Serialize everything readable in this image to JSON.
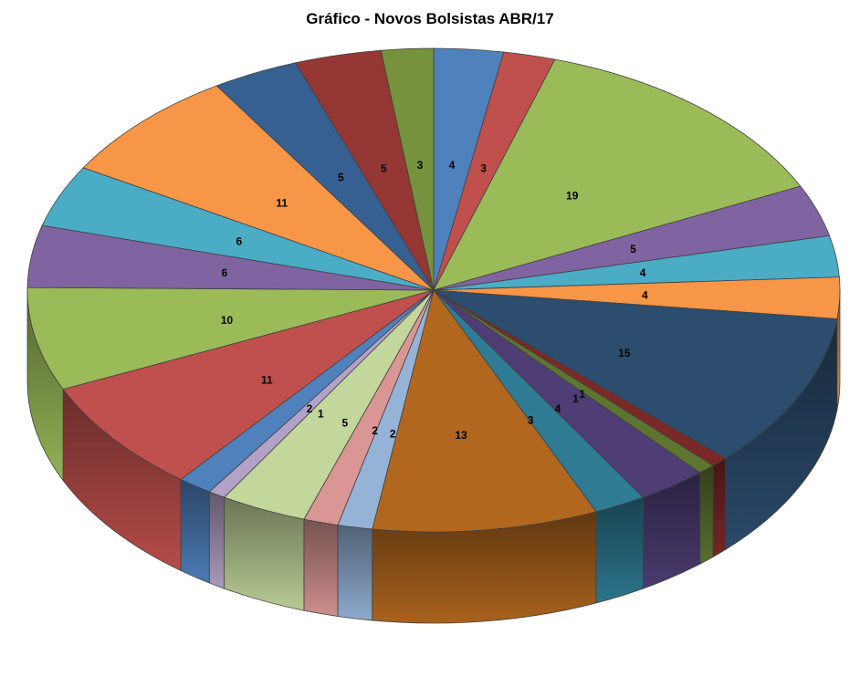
{
  "chart_data": {
    "type": "pie",
    "projection": "3d",
    "title": "Gráfico - Novos Bolsistas ABR/17",
    "start_angle_deg": 0,
    "direction": "clockwise",
    "total": 145,
    "legend": "none",
    "data_labels": "values-inside",
    "label_color": "#000000",
    "outline_color": "#404040",
    "background": "#FFFFFF",
    "slices": [
      {
        "value": 4,
        "color": "#4F81BD"
      },
      {
        "value": 3,
        "color": "#C0504D"
      },
      {
        "value": 19,
        "color": "#9BBB59"
      },
      {
        "value": 5,
        "color": "#8064A2"
      },
      {
        "value": 4,
        "color": "#4BACC6"
      },
      {
        "value": 4,
        "color": "#F79646"
      },
      {
        "value": 15,
        "color": "#2D4D6E"
      },
      {
        "value": 1,
        "color": "#7B2927"
      },
      {
        "value": 1,
        "color": "#5E7530"
      },
      {
        "value": 4,
        "color": "#4E3E75"
      },
      {
        "value": 3,
        "color": "#2E7B93"
      },
      {
        "value": 13,
        "color": "#B2671F"
      },
      {
        "value": 2,
        "color": "#95B3D7"
      },
      {
        "value": 2,
        "color": "#D99694"
      },
      {
        "value": 5,
        "color": "#C3D69B"
      },
      {
        "value": 1,
        "color": "#B3A2C7"
      },
      {
        "value": 2,
        "color": "#4F81BD"
      },
      {
        "value": 11,
        "color": "#C0504D"
      },
      {
        "value": 10,
        "color": "#9BBB59"
      },
      {
        "value": 6,
        "color": "#8064A2"
      },
      {
        "value": 6,
        "color": "#4BACC6"
      },
      {
        "value": 11,
        "color": "#F79646"
      },
      {
        "value": 5,
        "color": "#376092"
      },
      {
        "value": 5,
        "color": "#953734"
      },
      {
        "value": 3,
        "color": "#76923C"
      }
    ]
  }
}
